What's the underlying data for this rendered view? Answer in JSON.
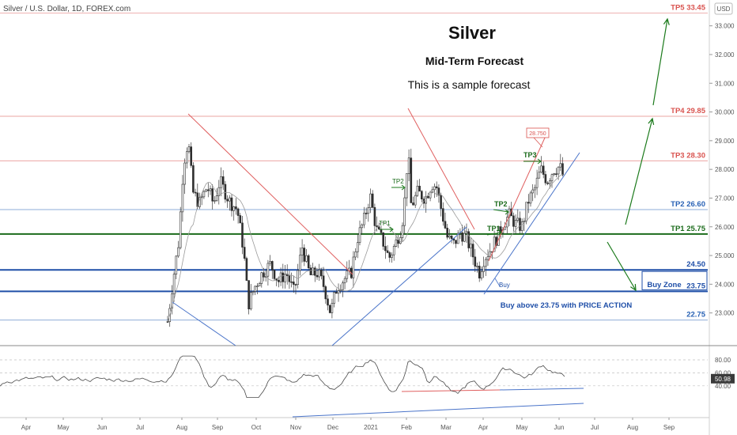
{
  "header": {
    "symbol": "Silver / U.S. Dollar, 1D, FOREX.com",
    "currency": "USD"
  },
  "chart_data": {
    "type": "candlestick",
    "title": "Silver",
    "subtitle": "Mid-Term Forecast",
    "note": "This is a sample forecast",
    "price_axis": {
      "range": [
        22.05,
        33.65
      ],
      "ticks": [
        "33.000",
        "32.000",
        "31.000",
        "30.000",
        "29.000",
        "28.000",
        "27.000",
        "26.000",
        "25.000",
        "24.000",
        "23.000"
      ]
    },
    "time_axis": {
      "labels": [
        "Apr",
        "May",
        "Jun",
        "Jul",
        "Aug",
        "Sep",
        "Oct",
        "Nov",
        "Dec",
        "2021",
        "Feb",
        "Mar",
        "Apr",
        "May",
        "Jun",
        "Jul",
        "Aug",
        "Sep"
      ]
    },
    "levels": [
      {
        "id": "tp5",
        "label": "TP5 33.45",
        "value": 33.45,
        "color": "#d9534f"
      },
      {
        "id": "tp4",
        "label": "TP4 29.85",
        "value": 29.85,
        "color": "#d9534f"
      },
      {
        "id": "tp3",
        "label": "TP3 28.30",
        "value": 28.3,
        "color": "#d9534f"
      },
      {
        "id": "tp2",
        "label": "TP2 26.60",
        "value": 26.6,
        "color": "#2962b5"
      },
      {
        "id": "tp1",
        "label": "TP1 25.75",
        "value": 25.75,
        "color": "#1b6b1b"
      },
      {
        "id": "l2450",
        "label": "24.50",
        "value": 24.5,
        "color": "#1f4fa8"
      },
      {
        "id": "l2375",
        "label": "23.75",
        "value": 23.75,
        "color": "#1f4fa8"
      },
      {
        "id": "l2275",
        "label": "22.75",
        "value": 22.75,
        "color": "#2962b5"
      }
    ],
    "zone": {
      "label": "Buy Zone",
      "from": 23.75,
      "to": 24.5
    },
    "zone_note": "Buy above 23.75 with PRICE ACTION",
    "annotations": [
      "TP3",
      "TP2",
      "TP1",
      "TP2",
      "TP1",
      "28.750",
      "Buy"
    ],
    "price_label": "28.750",
    "buy_label": "Buy",
    "rsi": {
      "ticks": [
        "80.00",
        "60.00",
        "40.00"
      ],
      "current": "50.98"
    },
    "colors": {
      "up": "#2f2f2f",
      "down": "#2f2f2f",
      "target": "#d9534f",
      "support": "#1f4fa8",
      "arrow": "#1b7a1b"
    }
  }
}
